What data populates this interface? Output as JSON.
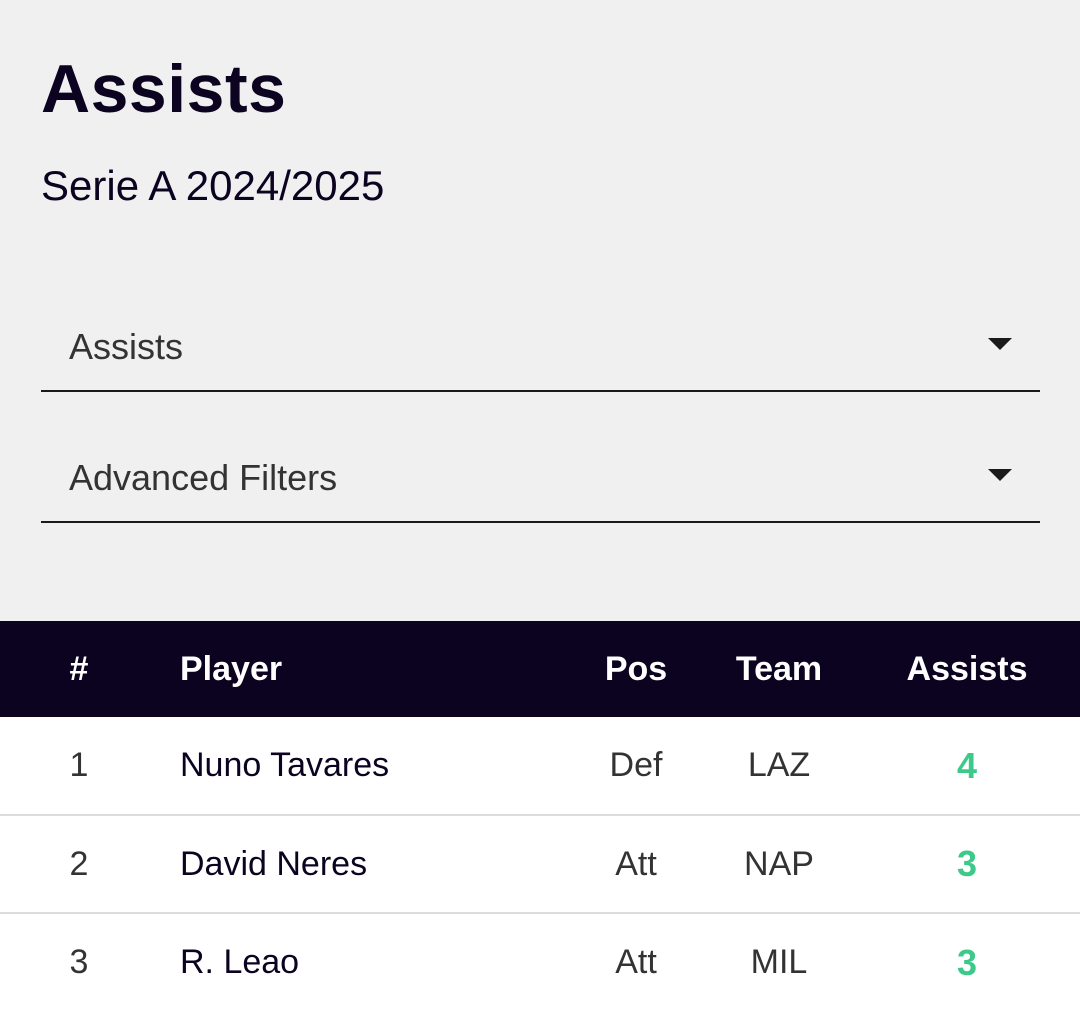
{
  "header": {
    "title": "Assists",
    "subtitle": "Serie A 2024/2025"
  },
  "filters": {
    "metric_select": "Assists",
    "advanced_filters": "Advanced Filters"
  },
  "table": {
    "columns": [
      "#",
      "Player",
      "Pos",
      "Team",
      "Assists"
    ],
    "rows": [
      {
        "rank": "1",
        "player": "Nuno Tavares",
        "pos": "Def",
        "team": "LAZ",
        "assists": "4"
      },
      {
        "rank": "2",
        "player": "David Neres",
        "pos": "Att",
        "team": "NAP",
        "assists": "3"
      },
      {
        "rank": "3",
        "player": "R. Leao",
        "pos": "Att",
        "team": "MIL",
        "assists": "3"
      }
    ]
  },
  "colors": {
    "header_bg": "#0b0320",
    "accent_green": "#3cc98a",
    "panel_bg": "#f0f0f0"
  },
  "icons": {
    "dropdown": "chevron-down-icon"
  }
}
